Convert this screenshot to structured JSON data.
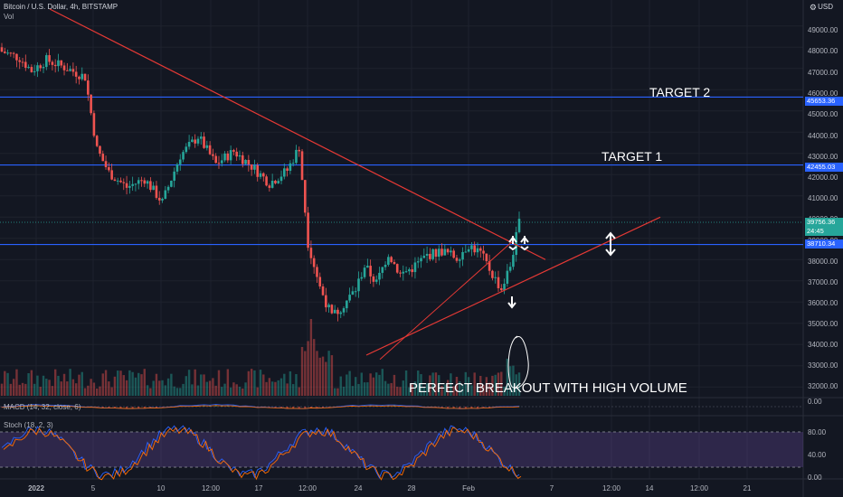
{
  "header": {
    "symbol": "Bitcoin / U.S. Dollar, 4h, BITSTAMP",
    "volume_label": "Vol",
    "currency": "USD",
    "settings_icon": "gear-icon"
  },
  "price_axis": {
    "ticks": [
      "49000.00",
      "48000.00",
      "47000.00",
      "46000.00",
      "45000.00",
      "44000.00",
      "43000.00",
      "42000.00",
      "41000.00",
      "40000.00",
      "39000.00",
      "38000.00",
      "37000.00",
      "36000.00",
      "35000.00",
      "34000.00",
      "33000.00",
      "32000.00"
    ],
    "tags": {
      "target2": "45653.36",
      "target1": "42455.03",
      "current": "39756.36",
      "countdown": "24:45",
      "support": "38710.34"
    }
  },
  "macd": {
    "label": "MACD (14, 32, close, 6)",
    "tick": "0.00"
  },
  "stoch": {
    "label": "Stoch (18, 2, 3)",
    "ticks": [
      "80.00",
      "40.00",
      "0.00"
    ]
  },
  "time_axis": [
    "2022",
    "5",
    "10",
    "12:00",
    "17",
    "12:00",
    "24",
    "28",
    "Feb",
    "7",
    "12:00",
    "14",
    "12:00",
    "21"
  ],
  "annotations": {
    "target2": "TARGET 2",
    "target1": "TARGET 1",
    "breakout": "PERFECT BREAKOUT WITH HIGH VOLUME"
  },
  "colors": {
    "background": "#131722",
    "up": "#26a69a",
    "down": "#ef5350",
    "level_line": "#2962ff",
    "trend_line": "#e53935",
    "stoch_band": "#7e57c2"
  },
  "chart_data": {
    "type": "candlestick",
    "symbol": "Bitcoin / U.S. Dollar",
    "interval": "4h",
    "exchange": "BITSTAMP",
    "ylim": [
      31500,
      49800
    ],
    "horizontal_levels": [
      45653.36,
      42455.03,
      38710.34
    ],
    "last_price": 39756.36,
    "close_path": [
      {
        "t": 0,
        "close": 47800
      },
      {
        "t": 6,
        "close": 47500
      },
      {
        "t": 10,
        "close": 46900
      },
      {
        "t": 15,
        "close": 47400
      },
      {
        "t": 22,
        "close": 47000
      },
      {
        "t": 28,
        "close": 46600
      },
      {
        "t": 32,
        "close": 43200
      },
      {
        "t": 36,
        "close": 42100
      },
      {
        "t": 42,
        "close": 41400
      },
      {
        "t": 48,
        "close": 41800
      },
      {
        "t": 54,
        "close": 40700
      },
      {
        "t": 60,
        "close": 42900
      },
      {
        "t": 66,
        "close": 43800
      },
      {
        "t": 72,
        "close": 42500
      },
      {
        "t": 78,
        "close": 43100
      },
      {
        "t": 84,
        "close": 42400
      },
      {
        "t": 90,
        "close": 41600
      },
      {
        "t": 96,
        "close": 42200
      },
      {
        "t": 100,
        "close": 43300
      },
      {
        "t": 103,
        "close": 38800
      },
      {
        "t": 107,
        "close": 36700
      },
      {
        "t": 111,
        "close": 35300
      },
      {
        "t": 115,
        "close": 35900
      },
      {
        "t": 119,
        "close": 36600
      },
      {
        "t": 122,
        "close": 37700
      },
      {
        "t": 126,
        "close": 36900
      },
      {
        "t": 130,
        "close": 38300
      },
      {
        "t": 134,
        "close": 37300
      },
      {
        "t": 138,
        "close": 37600
      },
      {
        "t": 143,
        "close": 38200
      },
      {
        "t": 148,
        "close": 38400
      },
      {
        "t": 153,
        "close": 38100
      },
      {
        "t": 157,
        "close": 38700
      },
      {
        "t": 161,
        "close": 38300
      },
      {
        "t": 165,
        "close": 37300
      },
      {
        "t": 168,
        "close": 36600
      },
      {
        "t": 171,
        "close": 37700
      },
      {
        "t": 174,
        "close": 39756
      }
    ]
  }
}
